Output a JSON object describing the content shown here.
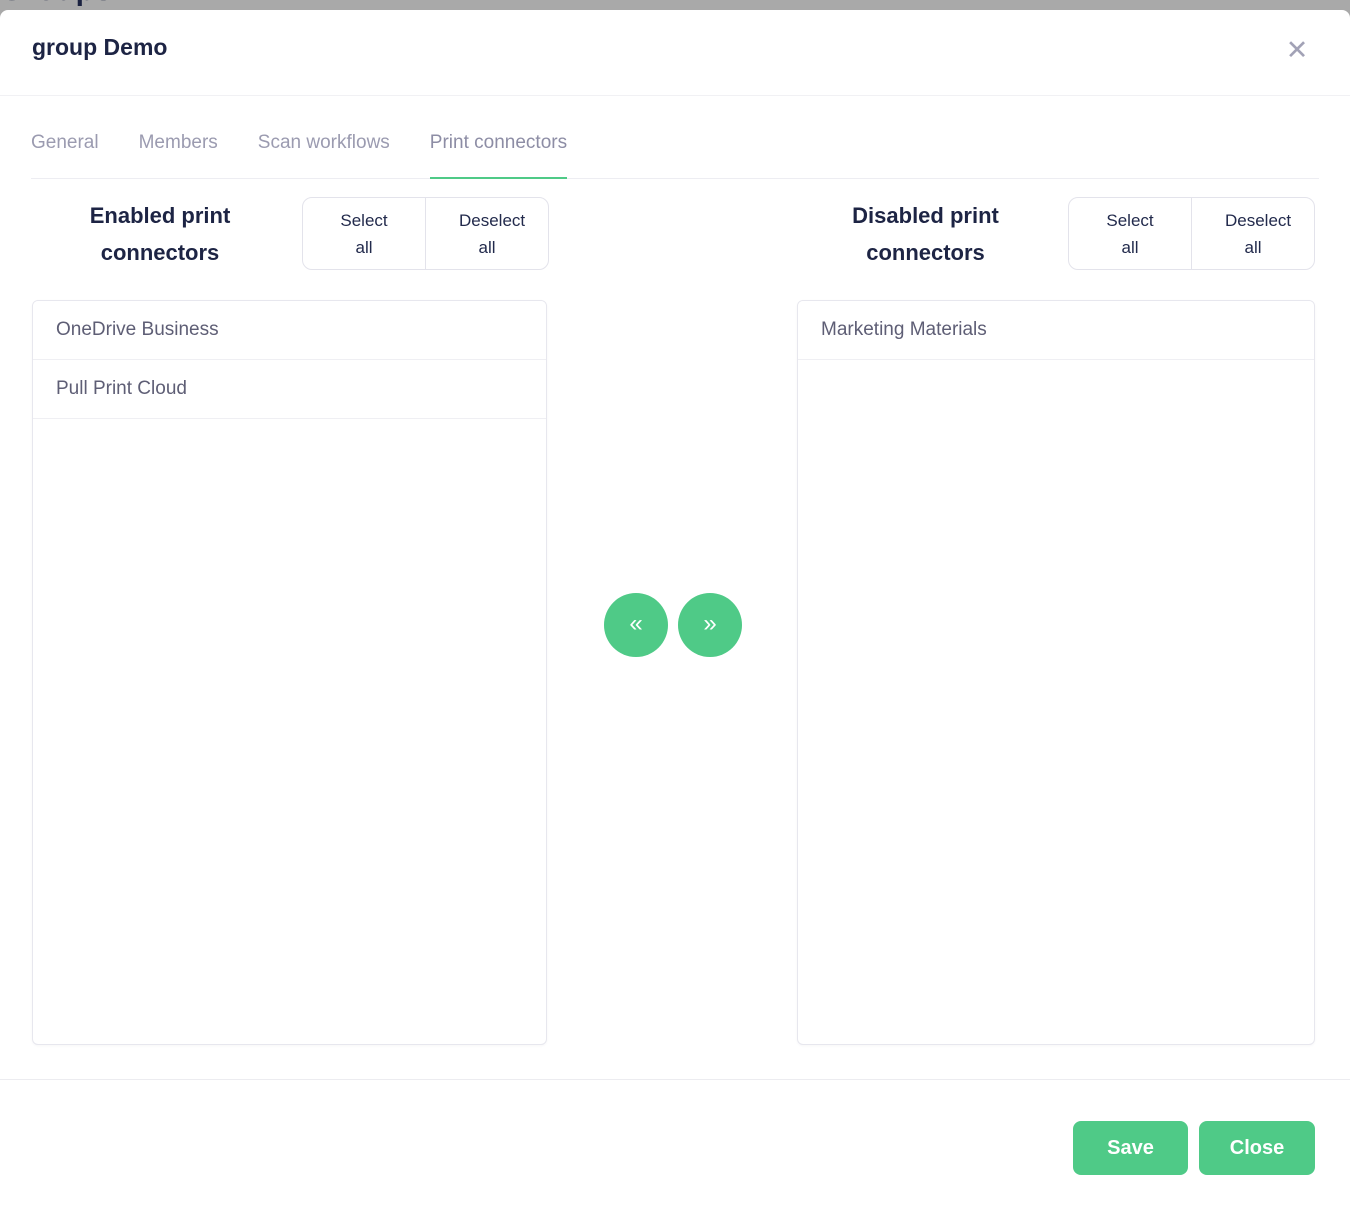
{
  "background": {
    "page_title": "Groups"
  },
  "modal": {
    "title": "group Demo"
  },
  "icons": {
    "close": "✕",
    "move_left": "«",
    "move_right": "»"
  },
  "tabs": [
    {
      "label": "General",
      "active": false
    },
    {
      "label": "Members",
      "active": false
    },
    {
      "label": "Scan workflows",
      "active": false
    },
    {
      "label": "Print connectors",
      "active": true
    }
  ],
  "panels": {
    "enabled": {
      "title": "Enabled print connectors",
      "select_all_label": "Select all",
      "deselect_all_label": "Deselect all",
      "items": [
        "OneDrive Business",
        "Pull Print Cloud"
      ]
    },
    "disabled": {
      "title": "Disabled print connectors",
      "select_all_label": "Select all",
      "deselect_all_label": "Deselect all",
      "items": [
        "Marketing Materials"
      ]
    }
  },
  "footer": {
    "save_label": "Save",
    "close_label": "Close"
  },
  "colors": {
    "accent_green": "#4fca87",
    "title_navy": "#1d2444",
    "tab_gray": "#9b9bb0",
    "list_text_gray": "#5e5e75",
    "backdrop_gray": "#a9a9a9"
  }
}
